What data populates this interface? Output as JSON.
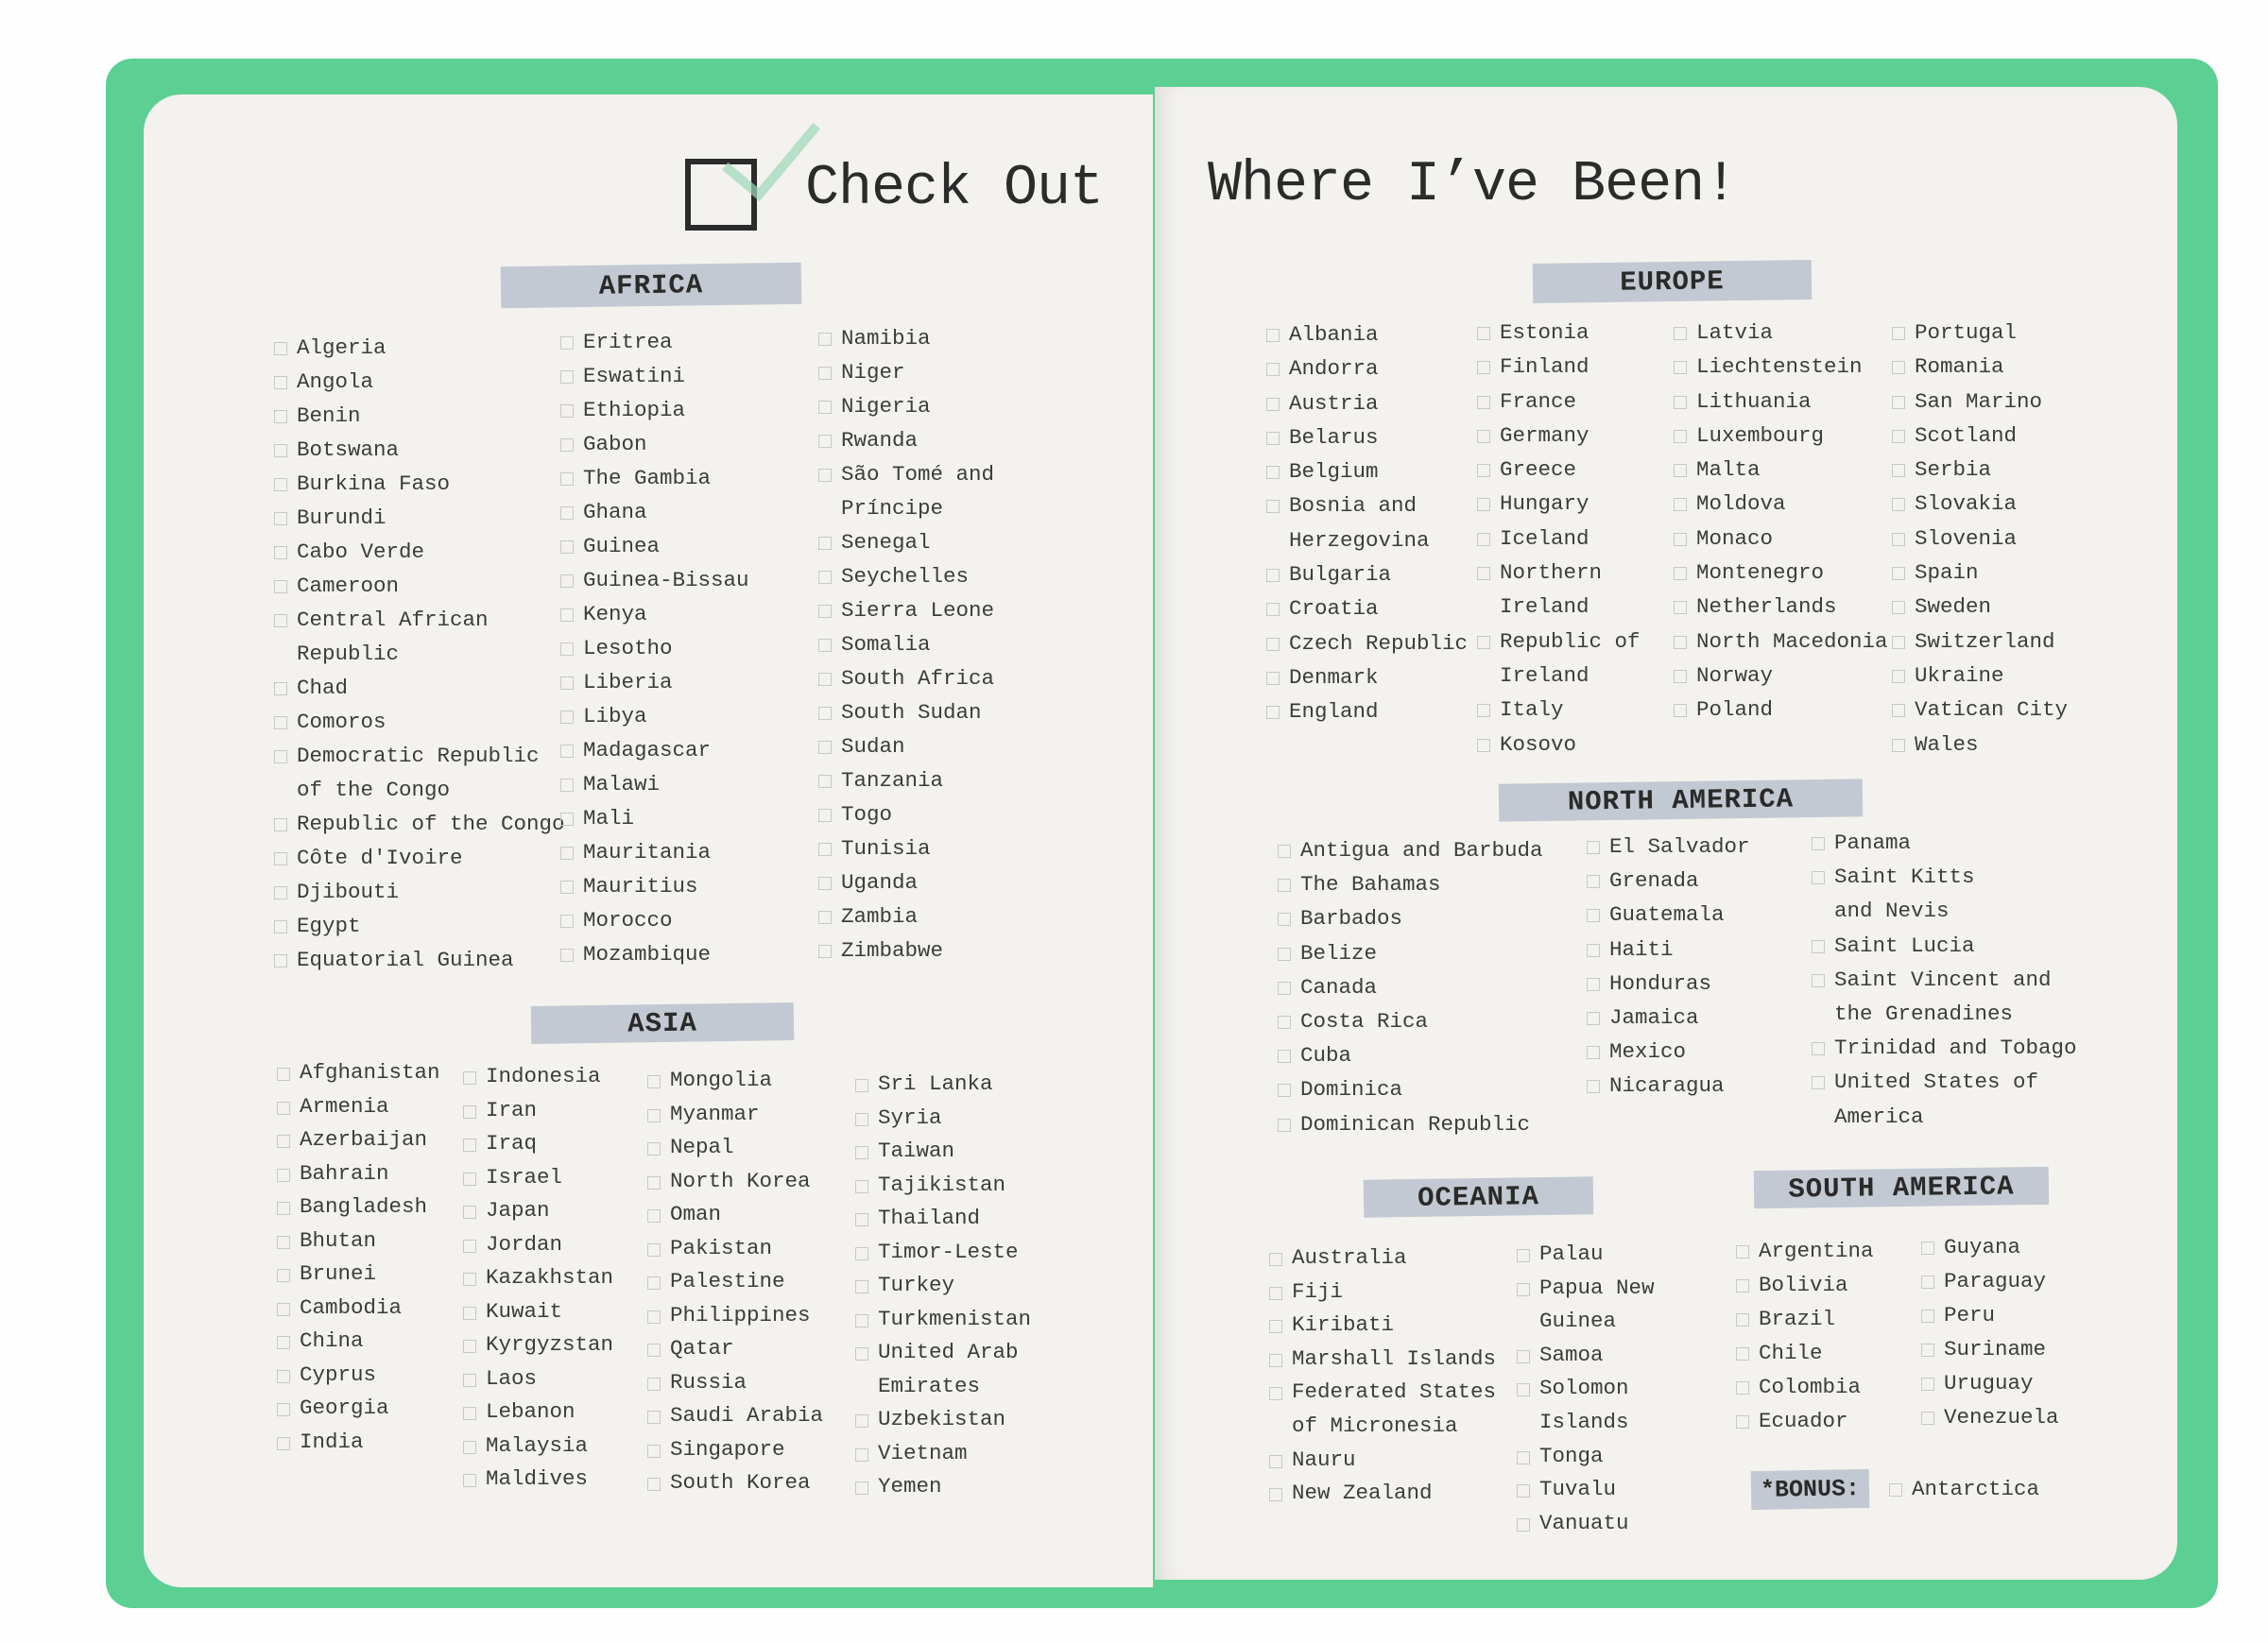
{
  "title": {
    "left": "Check Out",
    "right": "Where I’ve Been!"
  },
  "colors": {
    "cover": "#5ccf93",
    "page": "#f3f2ee",
    "band": "#c3c9d2"
  },
  "sections": {
    "africa": {
      "label": "AFRICA",
      "columns": [
        [
          "Algeria",
          "Angola",
          "Benin",
          "Botswana",
          "Burkina Faso",
          "Burundi",
          "Cabo Verde",
          "Cameroon",
          "Central African\n Republic",
          "Chad",
          "Comoros",
          "Democratic Republic\n of the Congo",
          "Republic of the Congo",
          "Côte d'Ivoire",
          "Djibouti",
          "Egypt",
          "Equatorial Guinea"
        ],
        [
          "Eritrea",
          "Eswatini",
          "Ethiopia",
          "Gabon",
          "The Gambia",
          "Ghana",
          "Guinea",
          "Guinea-Bissau",
          "Kenya",
          "Lesotho",
          "Liberia",
          "Libya",
          "Madagascar",
          "Malawi",
          "Mali",
          "Mauritania",
          "Mauritius",
          "Morocco",
          "Mozambique"
        ],
        [
          "Namibia",
          "Niger",
          "Nigeria",
          "Rwanda",
          "São Tomé and\n Príncipe",
          "Senegal",
          "Seychelles",
          "Sierra Leone",
          "Somalia",
          "South Africa",
          "South Sudan",
          "Sudan",
          "Tanzania",
          "Togo",
          "Tunisia",
          "Uganda",
          "Zambia",
          "Zimbabwe"
        ]
      ]
    },
    "asia": {
      "label": "ASIA",
      "columns": [
        [
          "Afghanistan",
          "Armenia",
          "Azerbaijan",
          "Bahrain",
          "Bangladesh",
          "Bhutan",
          "Brunei",
          "Cambodia",
          "China",
          "Cyprus",
          "Georgia",
          "India"
        ],
        [
          "Indonesia",
          "Iran",
          "Iraq",
          "Israel",
          "Japan",
          "Jordan",
          "Kazakhstan",
          "Kuwait",
          "Kyrgyzstan",
          "Laos",
          "Lebanon",
          "Malaysia",
          "Maldives"
        ],
        [
          "Mongolia",
          "Myanmar",
          "Nepal",
          "North Korea",
          "Oman",
          "Pakistan",
          "Palestine",
          "Philippines",
          "Qatar",
          "Russia",
          "Saudi Arabia",
          "Singapore",
          "South Korea"
        ],
        [
          "Sri Lanka",
          "Syria",
          "Taiwan",
          "Tajikistan",
          "Thailand",
          "Timor-Leste",
          "Turkey",
          "Turkmenistan",
          "United Arab\n Emirates",
          "Uzbekistan",
          "Vietnam",
          "Yemen"
        ]
      ]
    },
    "europe": {
      "label": "EUROPE",
      "columns": [
        [
          "Albania",
          "Andorra",
          "Austria",
          "Belarus",
          "Belgium",
          "Bosnia and\n Herzegovina",
          "Bulgaria",
          "Croatia",
          "Czech Republic",
          "Denmark",
          "England"
        ],
        [
          "Estonia",
          "Finland",
          "France",
          "Germany",
          "Greece",
          "Hungary",
          "Iceland",
          "Northern\n Ireland",
          "Republic of\n Ireland",
          "Italy",
          "Kosovo"
        ],
        [
          "Latvia",
          "Liechtenstein",
          "Lithuania",
          "Luxembourg",
          "Malta",
          "Moldova",
          "Monaco",
          "Montenegro",
          "Netherlands",
          "North Macedonia",
          "Norway",
          "Poland"
        ],
        [
          "Portugal",
          "Romania",
          "San Marino",
          "Scotland",
          "Serbia",
          "Slovakia",
          "Slovenia",
          "Spain",
          "Sweden",
          "Switzerland",
          "Ukraine",
          "Vatican City",
          "Wales"
        ]
      ]
    },
    "north_america": {
      "label": "NORTH AMERICA",
      "columns": [
        [
          "Antigua and Barbuda",
          "The Bahamas",
          "Barbados",
          "Belize",
          "Canada",
          "Costa Rica",
          "Cuba",
          "Dominica",
          "Dominican Republic"
        ],
        [
          "El Salvador",
          "Grenada",
          "Guatemala",
          "Haiti",
          "Honduras",
          "Jamaica",
          "Mexico",
          "Nicaragua"
        ],
        [
          "Panama",
          "Saint Kitts\n and Nevis",
          "Saint Lucia",
          "Saint Vincent and\n the Grenadines",
          "Trinidad and Tobago",
          "United States of\n America"
        ]
      ]
    },
    "oceania": {
      "label": "OCEANIA",
      "columns": [
        [
          "Australia",
          "Fiji",
          "Kiribati",
          "Marshall Islands",
          "Federated States\n of Micronesia",
          "Nauru",
          "New Zealand"
        ],
        [
          "Palau",
          "Papua New\n Guinea",
          "Samoa",
          "Solomon\n Islands",
          "Tonga",
          "Tuvalu",
          "Vanuatu"
        ]
      ]
    },
    "south_america": {
      "label": "SOUTH AMERICA",
      "columns": [
        [
          "Argentina",
          "Bolivia",
          "Brazil",
          "Chile",
          "Colombia",
          "Ecuador"
        ],
        [
          "Guyana",
          "Paraguay",
          "Peru",
          "Suriname",
          "Uruguay",
          "Venezuela"
        ]
      ]
    },
    "bonus": {
      "label": "*BONUS:",
      "item": "Antarctica"
    }
  }
}
